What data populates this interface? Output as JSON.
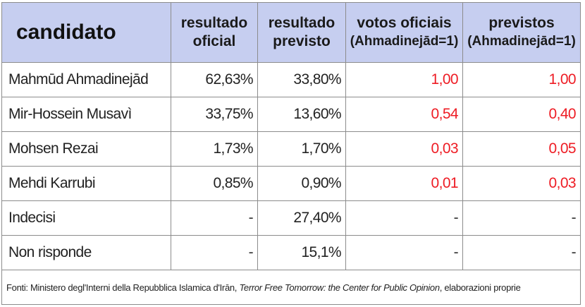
{
  "headers": {
    "candidate": "candidato",
    "official_result": [
      "resultado",
      "oficial"
    ],
    "forecast_result": [
      "resultado",
      "previsto"
    ],
    "official_votes": [
      "votos oficiais",
      "(Ahmadinejād=1)"
    ],
    "forecast_votes": [
      "previstos",
      "(Ahmadinejād=1)"
    ]
  },
  "rows": [
    {
      "name": "Mahmūd Ahmadinejād",
      "official": "62,63%",
      "forecast": "33,80%",
      "official_ratio": "1,00",
      "forecast_ratio": "1,00"
    },
    {
      "name": "Mir-Hossein Musavì",
      "official": "33,75%",
      "forecast": "13,60%",
      "official_ratio": "0,54",
      "forecast_ratio": "0,40"
    },
    {
      "name": "Mohsen Rezai",
      "official": "1,73%",
      "forecast": "1,70%",
      "official_ratio": "0,03",
      "forecast_ratio": "0,05"
    },
    {
      "name": "Mehdi Karrubi",
      "official": "0,85%",
      "forecast": "0,90%",
      "official_ratio": "0,01",
      "forecast_ratio": "0,03"
    },
    {
      "name": "Indecisi",
      "official": "-",
      "forecast": "27,40%",
      "official_ratio": "-",
      "forecast_ratio": "-"
    },
    {
      "name": "Non risponde",
      "official": "-",
      "forecast": "15,1%",
      "official_ratio": "-",
      "forecast_ratio": "-"
    }
  ],
  "footer": {
    "prefix": "Fonti: Ministero degl'Interni della Repubblica Islamica d'Irān, ",
    "italic": "Terror Free Tomorrow: the Center for Public Opinion",
    "suffix": ", elaborazioni proprie"
  },
  "colors": {
    "header_bg": "#c6cef0",
    "ratio_text": "#ee1c24",
    "grid": "#8c8c8c"
  }
}
